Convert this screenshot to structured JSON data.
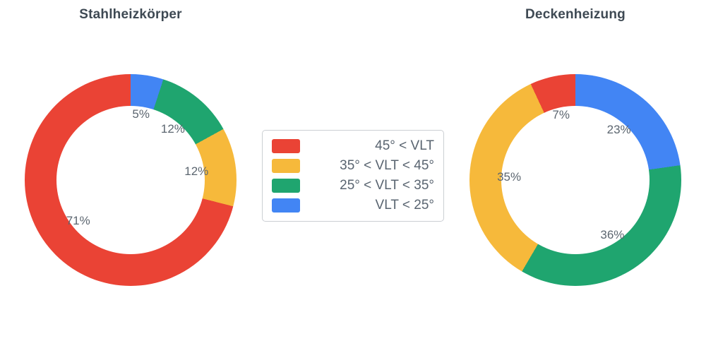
{
  "page": {
    "background": "#ffffff"
  },
  "legend": {
    "position": "center",
    "items": [
      {
        "label": "45° < VLT",
        "color": "#EA4335"
      },
      {
        "label": "35° < VLT < 45°",
        "color": "#F6B93B"
      },
      {
        "label": "25° < VLT < 35°",
        "color": "#1FA56F"
      },
      {
        "label": "VLT < 25°",
        "color": "#4285F4"
      }
    ]
  },
  "chart_data": [
    {
      "type": "pie",
      "title": "Stahlheizkörper",
      "hole": 0.7,
      "direction": "counterclockwise",
      "start_angle_deg": 0,
      "categories": [
        "45° < VLT",
        "35° < VLT < 45°",
        "25° < VLT < 35°",
        "VLT < 25°"
      ],
      "values": [
        71,
        12,
        12,
        5
      ],
      "labels": [
        "71%",
        "12%",
        "12%",
        "5%"
      ],
      "colors": [
        "#EA4335",
        "#F6B93B",
        "#1FA56F",
        "#4285F4"
      ]
    },
    {
      "type": "pie",
      "title": "Deckenheizung",
      "hole": 0.7,
      "direction": "counterclockwise",
      "start_angle_deg": 0,
      "categories": [
        "45° < VLT",
        "35° < VLT < 45°",
        "25° < VLT < 35°",
        "VLT < 25°"
      ],
      "values": [
        7,
        35,
        36,
        23
      ],
      "labels": [
        "7%",
        "35%",
        "36%",
        "23%"
      ],
      "colors": [
        "#EA4335",
        "#F6B93B",
        "#1FA56F",
        "#4285F4"
      ]
    }
  ]
}
